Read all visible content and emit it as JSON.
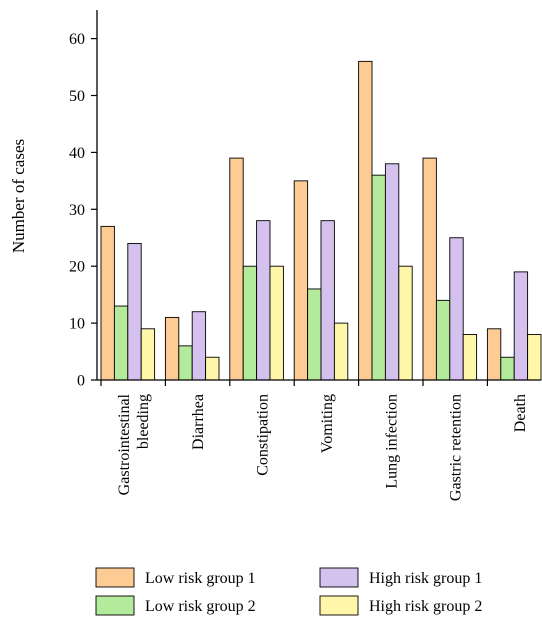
{
  "chart_data": {
    "type": "bar",
    "title": "",
    "xlabel": "",
    "ylabel": "Number of cases",
    "ylim": [
      0,
      65
    ],
    "yticks": [
      0,
      10,
      20,
      30,
      40,
      50,
      60
    ],
    "categories": [
      [
        "Gastrointestinal",
        "bleeding"
      ],
      [
        "Diarrhea"
      ],
      [
        "Constipation"
      ],
      [
        "Vomiting"
      ],
      [
        "Lung infection"
      ],
      [
        "Gastric retention"
      ],
      [
        "Death"
      ]
    ],
    "series": [
      {
        "name": "Low risk group 1",
        "color": "#FDCB94",
        "values": [
          27,
          11,
          39,
          35,
          56,
          39,
          9
        ]
      },
      {
        "name": "Low risk group 2",
        "color": "#B4EA9C",
        "values": [
          13,
          6,
          20,
          16,
          36,
          14,
          4
        ]
      },
      {
        "name": "High risk group 1",
        "color": "#D5C1EE",
        "values": [
          24,
          12,
          28,
          28,
          38,
          25,
          19
        ]
      },
      {
        "name": "High risk group 2",
        "color": "#FEF6A9",
        "values": [
          9,
          4,
          20,
          10,
          20,
          8,
          8
        ]
      }
    ],
    "grid": false,
    "legend_position": "bottom"
  }
}
